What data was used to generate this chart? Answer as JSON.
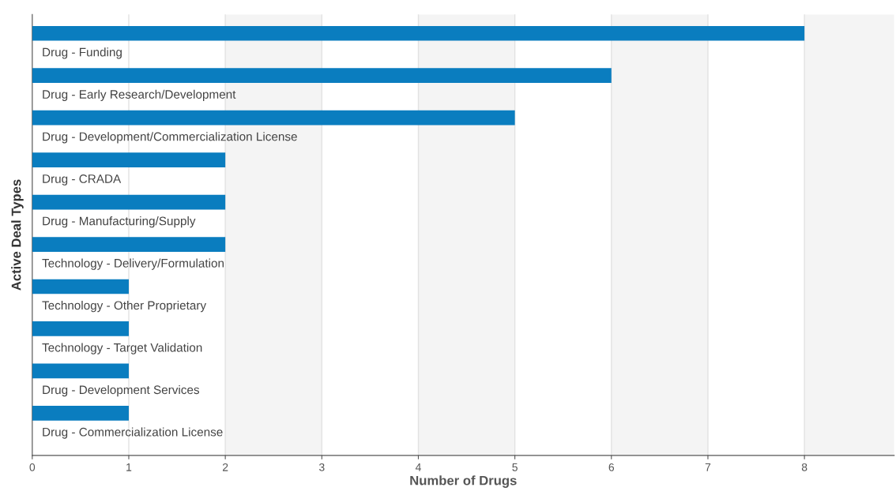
{
  "chart_data": {
    "type": "bar",
    "orientation": "horizontal",
    "xlabel": "Number of Drugs",
    "ylabel": "Active Deal Types",
    "categories": [
      "Drug - Funding",
      "Drug - Early Research/Development",
      "Drug - Development/Commercialization License",
      "Drug - CRADA",
      "Drug - Manufacturing/Supply",
      "Technology - Delivery/Formulation",
      "Technology - Other Proprietary",
      "Technology - Target Validation",
      "Drug - Development Services",
      "Drug - Commercialization License"
    ],
    "values": [
      8,
      6,
      5,
      2,
      2,
      2,
      1,
      1,
      1,
      1
    ],
    "color": "#0a7dbf",
    "xlim": [
      0,
      8.93
    ],
    "xticks": [
      0,
      1,
      2,
      3,
      4,
      5,
      6,
      7,
      8
    ],
    "grid": "x",
    "bands": [
      {
        "axis": "x",
        "from": 2,
        "to": 3,
        "color": "#f4f4f4"
      },
      {
        "axis": "x",
        "from": 4,
        "to": 5,
        "color": "#f4f4f4"
      },
      {
        "axis": "x",
        "from": 6,
        "to": 7,
        "color": "#f4f4f4"
      },
      {
        "axis": "x",
        "from": 8,
        "to": 8.93,
        "color": "#f4f4f4"
      }
    ]
  }
}
